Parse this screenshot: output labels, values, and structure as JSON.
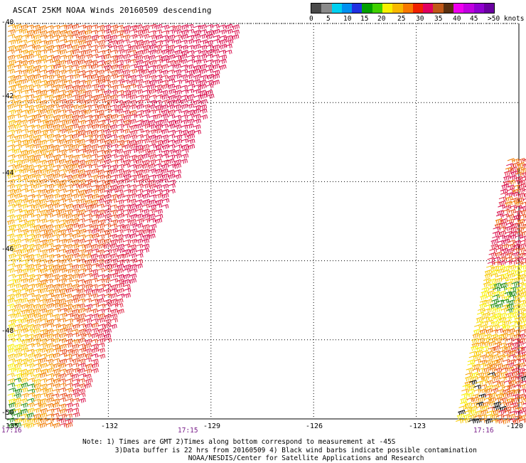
{
  "title": "ASCAT 25KM NOAA Winds 20160509 descending",
  "colorbar": {
    "colors": [
      "#4a4a4a",
      "#8a8a8a",
      "#00d0f0",
      "#0090f0",
      "#2030e0",
      "#00a000",
      "#40d000",
      "#f8f000",
      "#f8b800",
      "#f87800",
      "#f02000",
      "#e00060",
      "#c05818",
      "#5a3010",
      "#f000f0",
      "#c000e0",
      "#9000d0",
      "#6a00a0"
    ],
    "labels": [
      "0",
      "5",
      "10",
      "15",
      "20",
      "25",
      "30",
      "35",
      "40",
      "45",
      ">50 knots"
    ]
  },
  "map": {
    "lat_labels": [
      "-40",
      "-42",
      "-44",
      "-46",
      "-48",
      "-50"
    ],
    "lon_labels": [
      "-135",
      "-132",
      "-129",
      "-126",
      "-123",
      "-120"
    ],
    "lat_values": [
      -40,
      -42,
      -44,
      -46,
      -48,
      -50
    ],
    "lon_values": [
      -135,
      -132,
      -129,
      -126,
      -123,
      -120
    ],
    "time_labels": [
      "17:16",
      "17:15",
      "17:16"
    ]
  },
  "notes": {
    "line1": "Note: 1) Times are GMT 2)Times along bottom correspond to measurement at -45S",
    "line2": "3)Data buffer is 22 hrs from 20160509 4) Black wind barbs indicate possible contamination",
    "line3": "NOAA/NESDIS/Center for Satellite Applications and Research"
  }
}
